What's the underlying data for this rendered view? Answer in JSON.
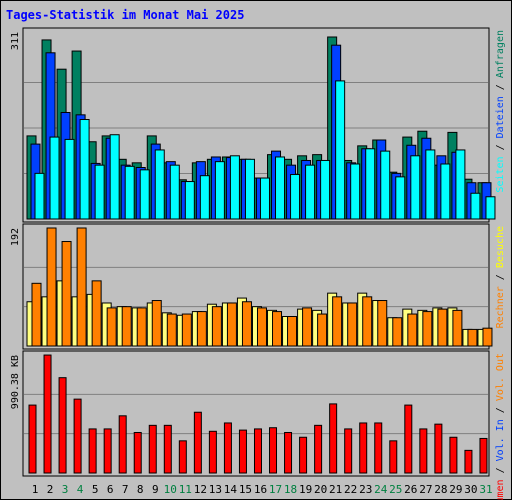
{
  "title": "Tages-Statistik im Monat Mai 2025",
  "colors": {
    "background": "#c0c0c0",
    "title": "#0000ff",
    "hits": "#008060",
    "files": "#0040ff",
    "pages": "#00ffff",
    "visits": "#ffff80",
    "sites": "#ff8000",
    "kbytes": "#ff0000",
    "weekday_label": "#000000",
    "weekend_label": "#008040"
  },
  "legend": {
    "top": [
      {
        "text": "Anfragen",
        "color": "#008060"
      },
      {
        "text": "Dateien",
        "color": "#0040ff"
      },
      {
        "text": "Seiten",
        "color": "#00ffff"
      }
    ],
    "middle": [
      {
        "text": "Besuche",
        "color": "#ffff00"
      },
      {
        "text": "Rechner",
        "color": "#ff8000"
      }
    ],
    "bottom": [
      {
        "text": "Vol. Out",
        "color": "#ff8000"
      },
      {
        "text": "Vol. In",
        "color": "#0040ff"
      },
      {
        "text": "Volumen",
        "color": "#ff0000"
      }
    ],
    "separator": " / "
  },
  "chart_data": [
    {
      "type": "bar",
      "panel": "top",
      "ymax_label": "311",
      "ylim": [
        0,
        311
      ],
      "categories": [
        "1",
        "2",
        "3",
        "4",
        "5",
        "6",
        "7",
        "8",
        "9",
        "10",
        "11",
        "12",
        "13",
        "14",
        "15",
        "16",
        "17",
        "18",
        "19",
        "20",
        "21",
        "22",
        "23",
        "24",
        "25",
        "26",
        "27",
        "28",
        "29",
        "30",
        "31"
      ],
      "series": [
        {
          "name": "Anfragen",
          "values": [
            142,
            306,
            256,
            287,
            132,
            142,
            102,
            96,
            142,
            96,
            67,
            96,
            102,
            106,
            102,
            70,
            110,
            102,
            108,
            110,
            311,
            100,
            125,
            135,
            80,
            140,
            150,
            92,
            148,
            68,
            62
          ]
        },
        {
          "name": "Dateien",
          "values": [
            128,
            284,
            182,
            178,
            95,
            138,
            92,
            88,
            128,
            98,
            64,
            98,
            106,
            105,
            102,
            70,
            116,
            92,
            100,
            100,
            297,
            96,
            120,
            135,
            78,
            126,
            138,
            108,
            114,
            62,
            62
          ]
        },
        {
          "name": "Seiten",
          "values": [
            78,
            140,
            136,
            170,
            92,
            144,
            90,
            84,
            118,
            92,
            64,
            74,
            98,
            108,
            102,
            70,
            106,
            76,
            92,
            100,
            236,
            94,
            120,
            116,
            72,
            108,
            118,
            94,
            118,
            44,
            38
          ]
        }
      ]
    },
    {
      "type": "bar",
      "panel": "middle",
      "ymax_label": "192",
      "ylim": [
        0,
        192
      ],
      "categories": [
        "1",
        "2",
        "3",
        "4",
        "5",
        "6",
        "7",
        "8",
        "9",
        "10",
        "11",
        "12",
        "13",
        "14",
        "15",
        "16",
        "17",
        "18",
        "19",
        "20",
        "21",
        "22",
        "23",
        "24",
        "25",
        "26",
        "27",
        "28",
        "29",
        "30",
        "31"
      ],
      "series": [
        {
          "name": "Besuche",
          "values": [
            72,
            80,
            106,
            80,
            84,
            70,
            64,
            62,
            70,
            54,
            50,
            56,
            68,
            70,
            78,
            64,
            58,
            48,
            60,
            58,
            86,
            70,
            86,
            74,
            46,
            60,
            58,
            62,
            62,
            27,
            27
          ]
        },
        {
          "name": "Rechner",
          "values": [
            102,
            192,
            170,
            192,
            106,
            62,
            64,
            62,
            74,
            52,
            52,
            56,
            64,
            70,
            72,
            62,
            56,
            48,
            62,
            52,
            80,
            70,
            80,
            74,
            46,
            52,
            56,
            60,
            58,
            27,
            29
          ]
        }
      ]
    },
    {
      "type": "bar",
      "panel": "bottom",
      "ymax_label": "990.38 KB",
      "ylim": [
        0,
        990.38
      ],
      "categories": [
        "1",
        "2",
        "3",
        "4",
        "5",
        "6",
        "7",
        "8",
        "9",
        "10",
        "11",
        "12",
        "13",
        "14",
        "15",
        "16",
        "17",
        "18",
        "19",
        "20",
        "21",
        "22",
        "23",
        "24",
        "25",
        "26",
        "27",
        "28",
        "29",
        "30",
        "31"
      ],
      "series": [
        {
          "name": "Volumen",
          "values": [
            570,
            990,
            800,
            620,
            370,
            370,
            480,
            340,
            400,
            400,
            270,
            510,
            350,
            420,
            360,
            370,
            380,
            340,
            300,
            400,
            580,
            370,
            420,
            420,
            270,
            570,
            370,
            410,
            300,
            190,
            290
          ]
        }
      ]
    }
  ],
  "day_labels": [
    {
      "text": "1",
      "weekend": false
    },
    {
      "text": "2",
      "weekend": false
    },
    {
      "text": "3",
      "weekend": true
    },
    {
      "text": "4",
      "weekend": true
    },
    {
      "text": "5",
      "weekend": false
    },
    {
      "text": "6",
      "weekend": false
    },
    {
      "text": "7",
      "weekend": false
    },
    {
      "text": "8",
      "weekend": false
    },
    {
      "text": "9",
      "weekend": false
    },
    {
      "text": "10",
      "weekend": true
    },
    {
      "text": "11",
      "weekend": true
    },
    {
      "text": "12",
      "weekend": false
    },
    {
      "text": "13",
      "weekend": false
    },
    {
      "text": "14",
      "weekend": false
    },
    {
      "text": "15",
      "weekend": false
    },
    {
      "text": "16",
      "weekend": false
    },
    {
      "text": "17",
      "weekend": true
    },
    {
      "text": "18",
      "weekend": true
    },
    {
      "text": "19",
      "weekend": false
    },
    {
      "text": "20",
      "weekend": false
    },
    {
      "text": "21",
      "weekend": false
    },
    {
      "text": "22",
      "weekend": false
    },
    {
      "text": "23",
      "weekend": false
    },
    {
      "text": "24",
      "weekend": true
    },
    {
      "text": "25",
      "weekend": true
    },
    {
      "text": "26",
      "weekend": false
    },
    {
      "text": "27",
      "weekend": false
    },
    {
      "text": "28",
      "weekend": false
    },
    {
      "text": "29",
      "weekend": false
    },
    {
      "text": "30",
      "weekend": false
    },
    {
      "text": "31",
      "weekend": true
    }
  ]
}
